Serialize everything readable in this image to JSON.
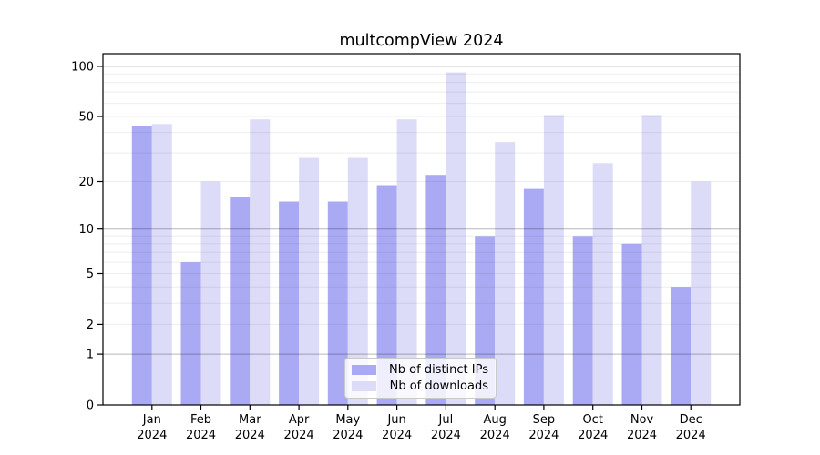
{
  "title": "multcompView 2024",
  "legend": {
    "items": [
      {
        "label": "Nb of distinct IPs",
        "color": "#aaaaf4"
      },
      {
        "label": "Nb of downloads",
        "color": "#dcdcf8"
      }
    ]
  },
  "chart_data": {
    "type": "bar",
    "title": "multcompView 2024",
    "categories": [
      "Jan",
      "Feb",
      "Mar",
      "Apr",
      "May",
      "Jun",
      "Jul",
      "Aug",
      "Sep",
      "Oct",
      "Nov",
      "Dec"
    ],
    "category_year": "2024",
    "series": [
      {
        "name": "Nb of distinct IPs",
        "color": "#aaaaf4",
        "values": [
          44,
          6,
          16,
          15,
          15,
          19,
          22,
          9,
          18,
          9,
          8,
          4
        ]
      },
      {
        "name": "Nb of downloads",
        "color": "#dcdcf8",
        "values": [
          45,
          20,
          48,
          28,
          28,
          48,
          92,
          35,
          51,
          26,
          51,
          20
        ]
      }
    ],
    "yscale": "log1p",
    "ylim": [
      0,
      119
    ],
    "ytick_labels": [
      0,
      1,
      2,
      5,
      10,
      20,
      50,
      100
    ],
    "grid_major": [
      1,
      10,
      100
    ],
    "grid_minor": [
      2,
      3,
      4,
      5,
      6,
      7,
      8,
      9,
      20,
      30,
      40,
      50,
      60,
      70,
      80,
      90
    ],
    "grid": true,
    "legend_position": "lower center",
    "xlabel": "",
    "ylabel": ""
  }
}
